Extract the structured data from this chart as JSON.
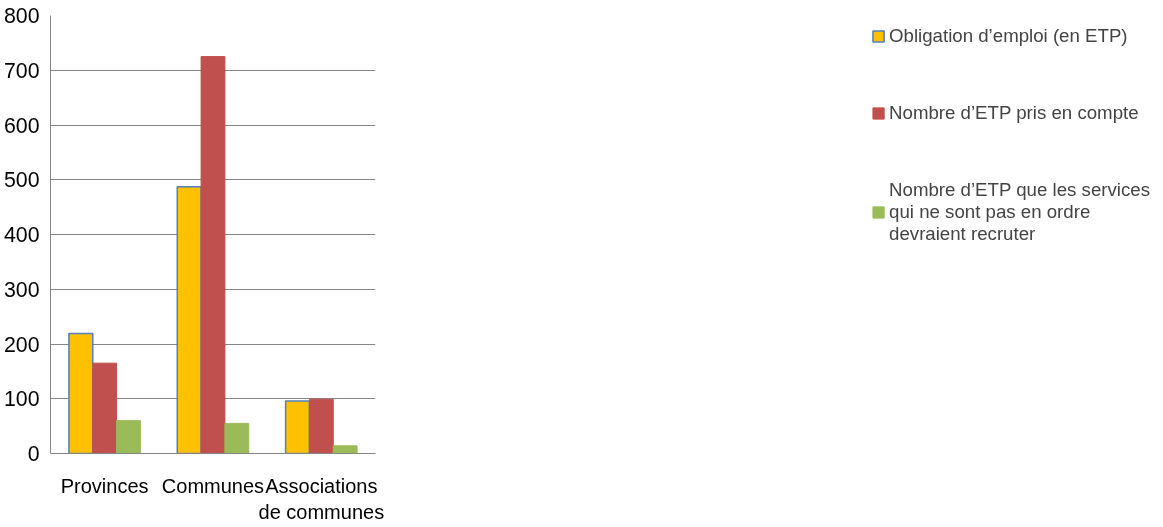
{
  "chart_data": {
    "type": "bar",
    "categories": [
      "Provinces",
      "Communes",
      "Associations de communes"
    ],
    "series": [
      {
        "name": "Obligation d’emploi (en ETP)",
        "color": "#ffc000",
        "values": [
          219,
          487,
          96
        ]
      },
      {
        "name": "Nombre d’ETP pris en compte",
        "color": "#c0504d",
        "values": [
          165,
          725,
          99
        ]
      },
      {
        "name": "Nombre d’ETP que les services qui ne sont pas en ordre devraient recruter",
        "color": "#9bbb59",
        "values": [
          60,
          55,
          14
        ]
      }
    ],
    "ylim": [
      0,
      800
    ],
    "yticks": [
      0,
      100,
      200,
      300,
      400,
      500,
      600,
      700,
      800
    ],
    "grid": "y",
    "legend": "right"
  }
}
